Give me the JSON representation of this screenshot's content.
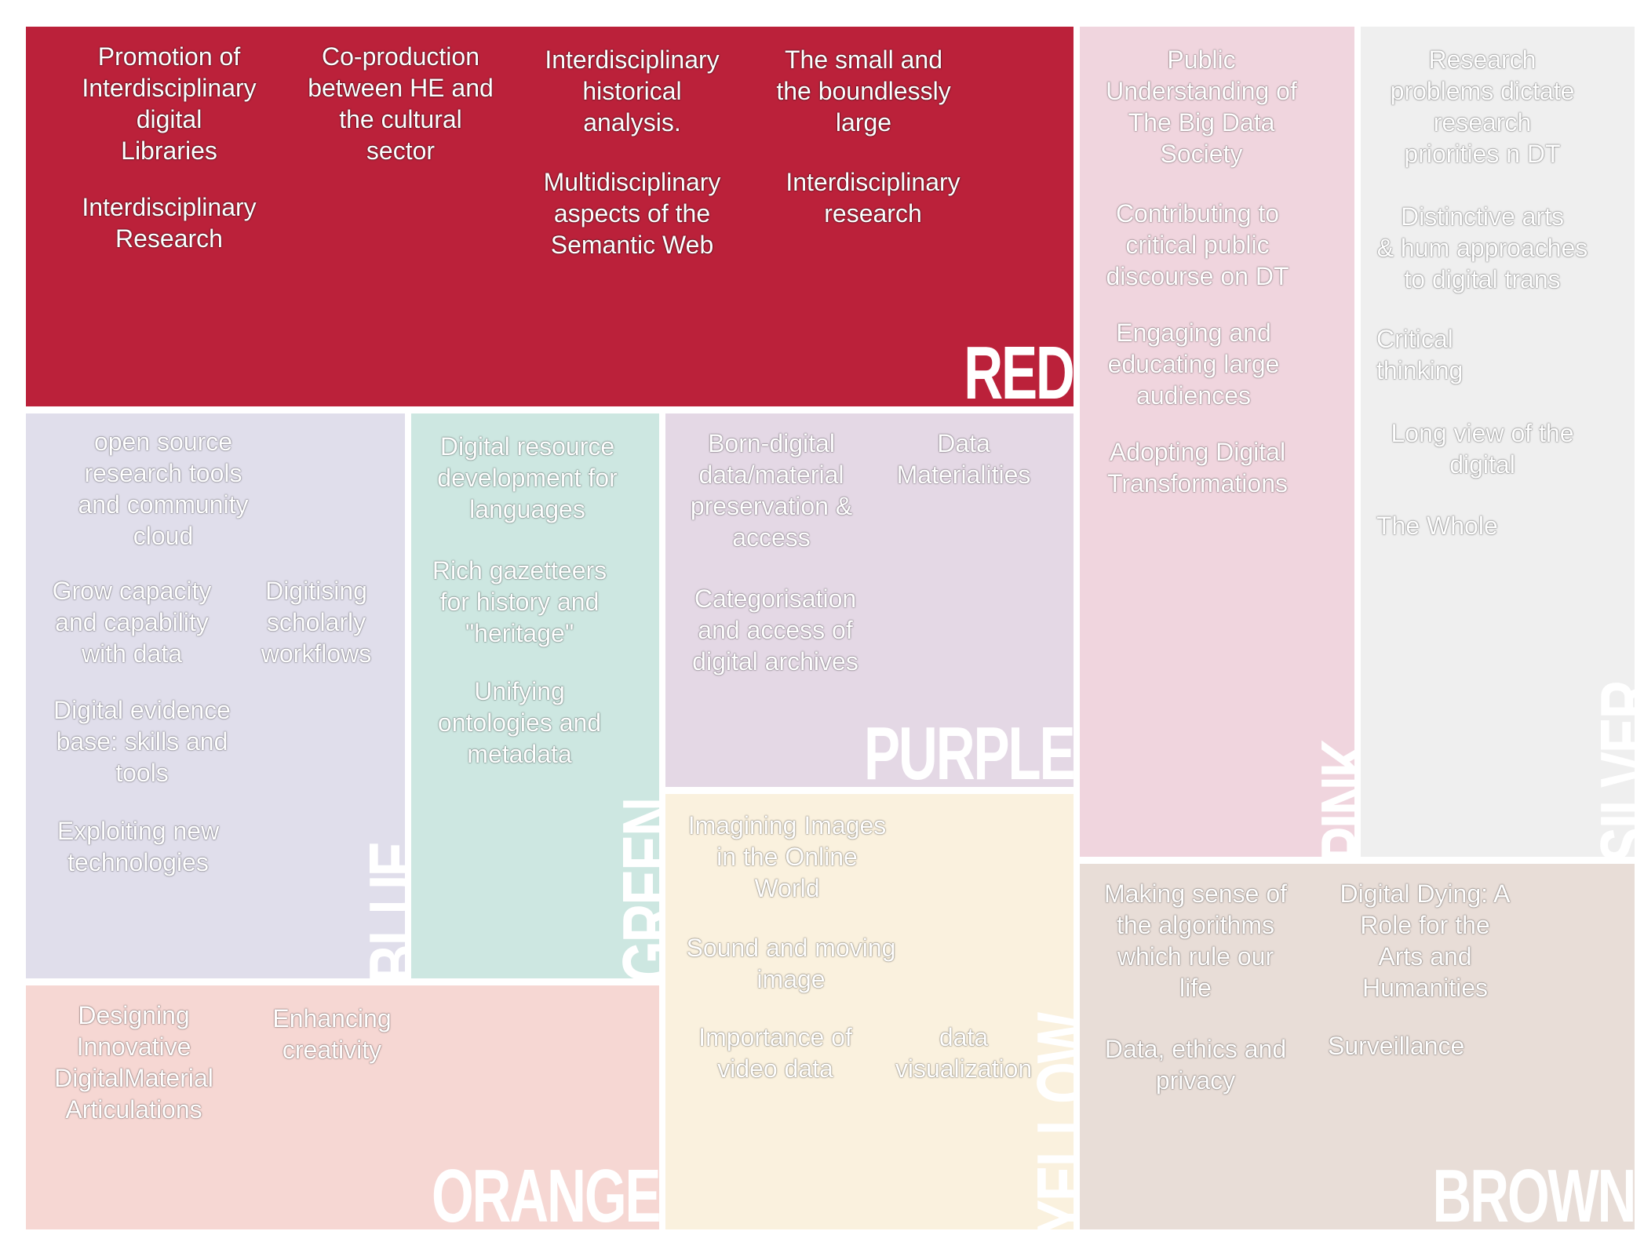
{
  "colors": {
    "red": "#BB213A",
    "pink": "#F0D5DE",
    "silver": "#EFEFEF",
    "blue": "#E0DEEB",
    "green": "#CDE7E1",
    "purple": "#E4D8E5",
    "yellow": "#FAF1DE",
    "orange": "#F6D7D3",
    "brown": "#E8DDD7"
  },
  "panels": {
    "red": {
      "label": "RED",
      "items": [
        "Promotion of\nInterdisciplinary\ndigital\nLibraries",
        "Interdisciplinary\nResearch",
        "Co-production\nbetween HE and\nthe cultural\nsector",
        "Interdisciplinary\nhistorical\nanalysis.",
        "Multidisciplinary\naspects of the\nSemantic Web",
        "The small and\nthe boundlessly\nlarge",
        "Interdisciplinary\nresearch"
      ]
    },
    "pink": {
      "label": "PINK",
      "items": [
        "Public\nUnderstanding of\nThe Big Data\nSociety",
        "Contributing to\ncritical public\ndiscourse on DT",
        "Engaging and\neducating large\naudiences",
        "Adopting Digital\nTransformations"
      ]
    },
    "silver": {
      "label": "SILVER",
      "items": [
        "Research\nproblems dictate\nresearch\npriorities n DT",
        "Distinctive arts\n& hum approaches\nto digital trans",
        "Critical\nthinking",
        "Long view of the\ndigital",
        "The Whole"
      ]
    },
    "blue": {
      "label": "BLUE",
      "items": [
        "open source\nresearch tools\nand community\ncloud",
        "Grow capacity\nand capability\nwith data",
        "Digitising\nscholarly\nworkflows",
        "Digital evidence\nbase: skills and\ntools",
        "Exploiting new\ntechnologies"
      ]
    },
    "green": {
      "label": "GREEN",
      "items": [
        "Digital resource\ndevelopment for\nlanguages",
        "Rich gazetteers\nfor history and\n\"heritage\"",
        "Unifying\nontologies and\nmetadata"
      ]
    },
    "purple": {
      "label": "PURPLE",
      "items": [
        "Born-digital\ndata/material\npreservation &\naccess",
        "Data\nMaterialities",
        "Categorisation\nand access of\ndigital archives"
      ]
    },
    "yellow": {
      "label": "YELLOW",
      "items": [
        "Imagining Images\nin the Online\nWorld",
        "Sound and moving\nimage",
        "Importance of\nvideo data",
        "data\nvisualization"
      ]
    },
    "orange": {
      "label": "ORANGE",
      "items": [
        "Designing\nInnovative\nDigitalMaterial\nArticulations",
        "Enhancing\ncreativity"
      ]
    },
    "brown": {
      "label": "BROWN",
      "items": [
        "Making sense of\nthe algorithms\nwhich rule our\nlife",
        "Digital Dying: A\nRole for the\nArts and\nHumanities",
        "Data, ethics and\nprivacy",
        "Surveillance"
      ]
    }
  }
}
